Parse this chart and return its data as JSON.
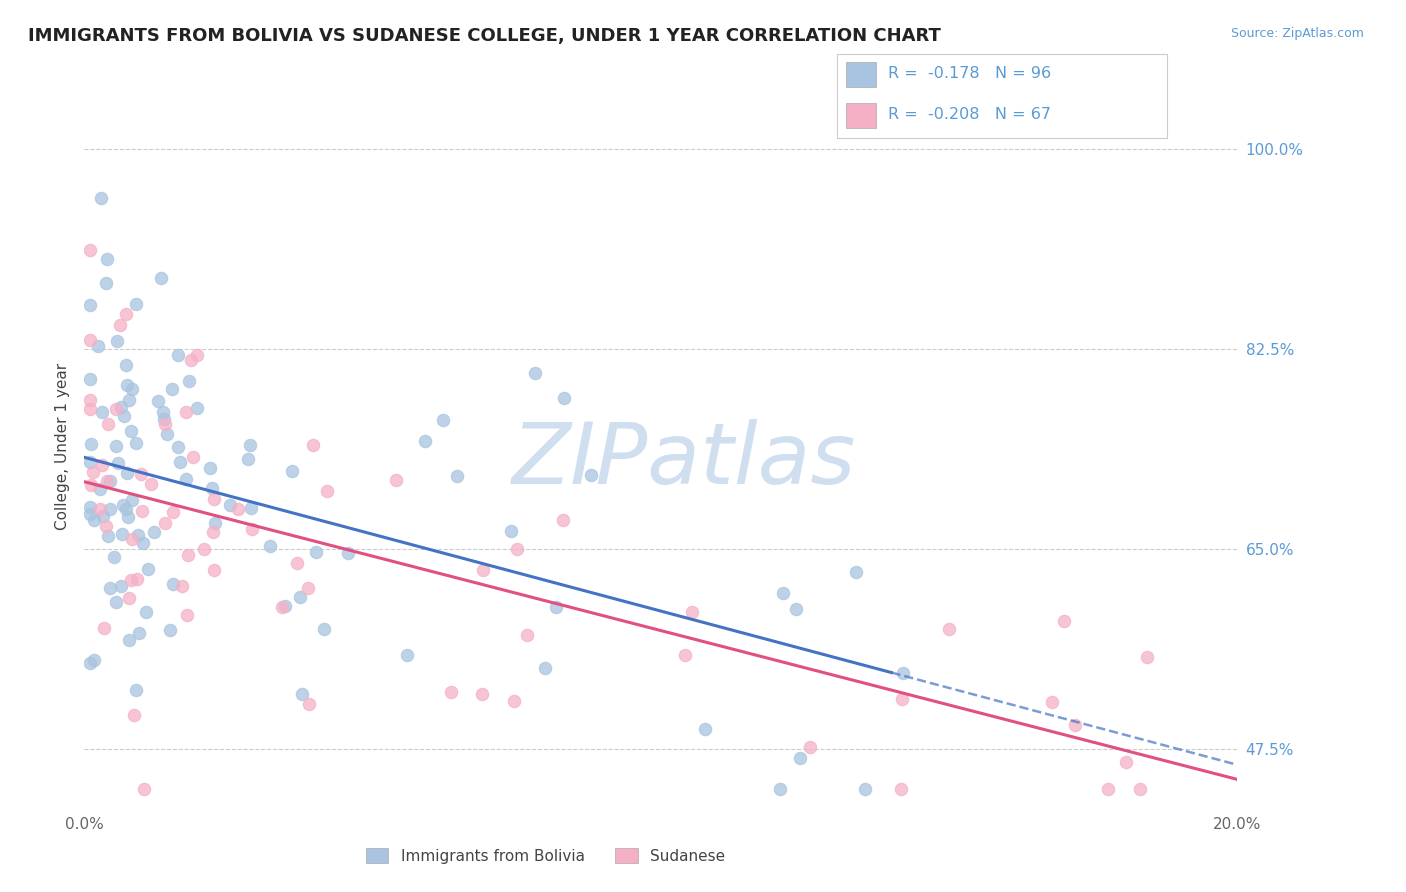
{
  "title": "IMMIGRANTS FROM BOLIVIA VS SUDANESE COLLEGE, UNDER 1 YEAR CORRELATION CHART",
  "source_text": "Source: ZipAtlas.com",
  "ylabel": "College, Under 1 year",
  "xlim": [
    0.0,
    0.2
  ],
  "ylim": [
    0.42,
    1.06
  ],
  "yticks": [
    0.475,
    0.65,
    0.825,
    1.0
  ],
  "ytick_labels": [
    "47.5%",
    "65.0%",
    "82.5%",
    "100.0%"
  ],
  "xtick_positions": [
    0.0,
    0.2
  ],
  "xtick_labels": [
    "0.0%",
    "20.0%"
  ],
  "bolivia_color": "#a8c4e0",
  "sudanese_color": "#f5b0c5",
  "bolivia_line_color": "#4472c4",
  "sudanese_line_color": "#e05080",
  "watermark": "ZIPatlas",
  "watermark_color": "#d0dff0",
  "grid_color": "#cccccc",
  "title_fontsize": 13,
  "axis_label_fontsize": 11,
  "tick_label_fontsize": 11,
  "legend_fontsize": 12,
  "bolivia_label": "Immigrants from Bolivia",
  "sudanese_label": "Sudanese",
  "bolivia_R_text": "R =  -0.178",
  "bolivia_N_text": "N = 96",
  "sudanese_R_text": "R =  -0.208",
  "sudanese_N_text": "N = 67"
}
